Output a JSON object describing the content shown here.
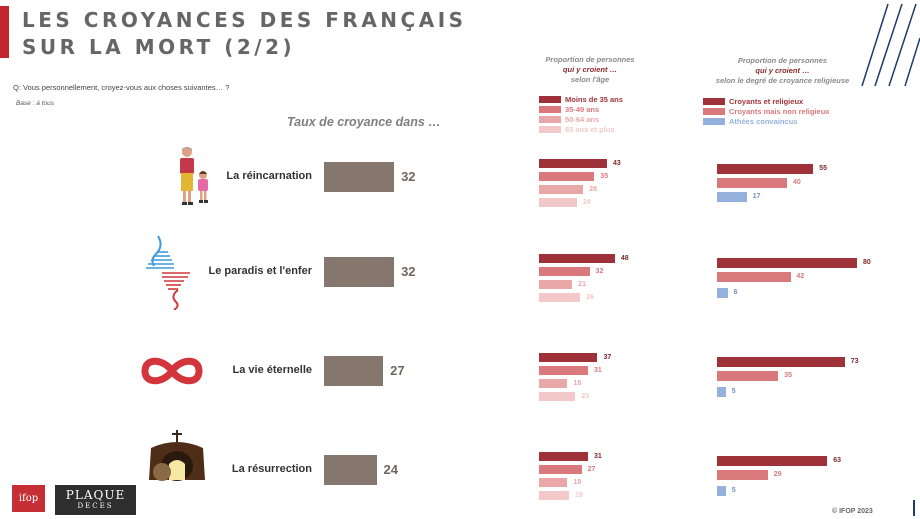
{
  "header": {
    "title_line1": "LES CROYANCES DES FRANÇAIS",
    "title_line2": "SUR LA MORT (2/2)",
    "question": "Q: Vous personnellement, croyez-vous aux choses suivantes… ?",
    "base": "Base : à tous"
  },
  "chart_data": {
    "type": "bar",
    "subtitle": "Taux de croyance dans …",
    "categories": [
      "La réincarnation",
      "Le paradis et l'enfer",
      "La vie éternelle",
      "La résurrection"
    ],
    "values": [
      32,
      32,
      27,
      24
    ],
    "age_breakdown": {
      "header": [
        "Proportion de personnes",
        "qui y croient …",
        "selon l'âge"
      ],
      "series": [
        {
          "name": "Moins de 35 ans",
          "color": "#9e3238",
          "values": [
            43,
            48,
            37,
            31
          ]
        },
        {
          "name": "35-49 ans",
          "color": "#d9797c",
          "values": [
            35,
            32,
            31,
            27
          ]
        },
        {
          "name": "50-64 ans",
          "color": "#eaa7a8",
          "values": [
            28,
            21,
            18,
            18
          ]
        },
        {
          "name": "65 ans et plus",
          "color": "#f2c8c8",
          "values": [
            24,
            26,
            23,
            19
          ]
        }
      ]
    },
    "belief_breakdown": {
      "header": [
        "Proportion de personnes",
        "qui y croient …",
        "selon le degré de croyance religieuse"
      ],
      "series": [
        {
          "name": "Croyants et religieux",
          "color": "#9e3238",
          "values": [
            55,
            80,
            73,
            63
          ]
        },
        {
          "name": "Croyants mais non religieux",
          "color": "#d9797c",
          "values": [
            40,
            42,
            35,
            29
          ]
        },
        {
          "name": "Athées convaincus",
          "color": "#94b1dd",
          "values": [
            17,
            6,
            5,
            5
          ]
        }
      ]
    },
    "colors": {
      "main_bar": "#85776d"
    }
  },
  "icons": [
    "grandmother-child-icon",
    "heaven-hell-icon",
    "infinity-icon",
    "tomb-cross-icon"
  ],
  "footer": {
    "ifop_logo": "ifop",
    "plaque_line1": "PLAQUE",
    "plaque_line2": "DECES",
    "copyright": "© IFOP 2023"
  }
}
